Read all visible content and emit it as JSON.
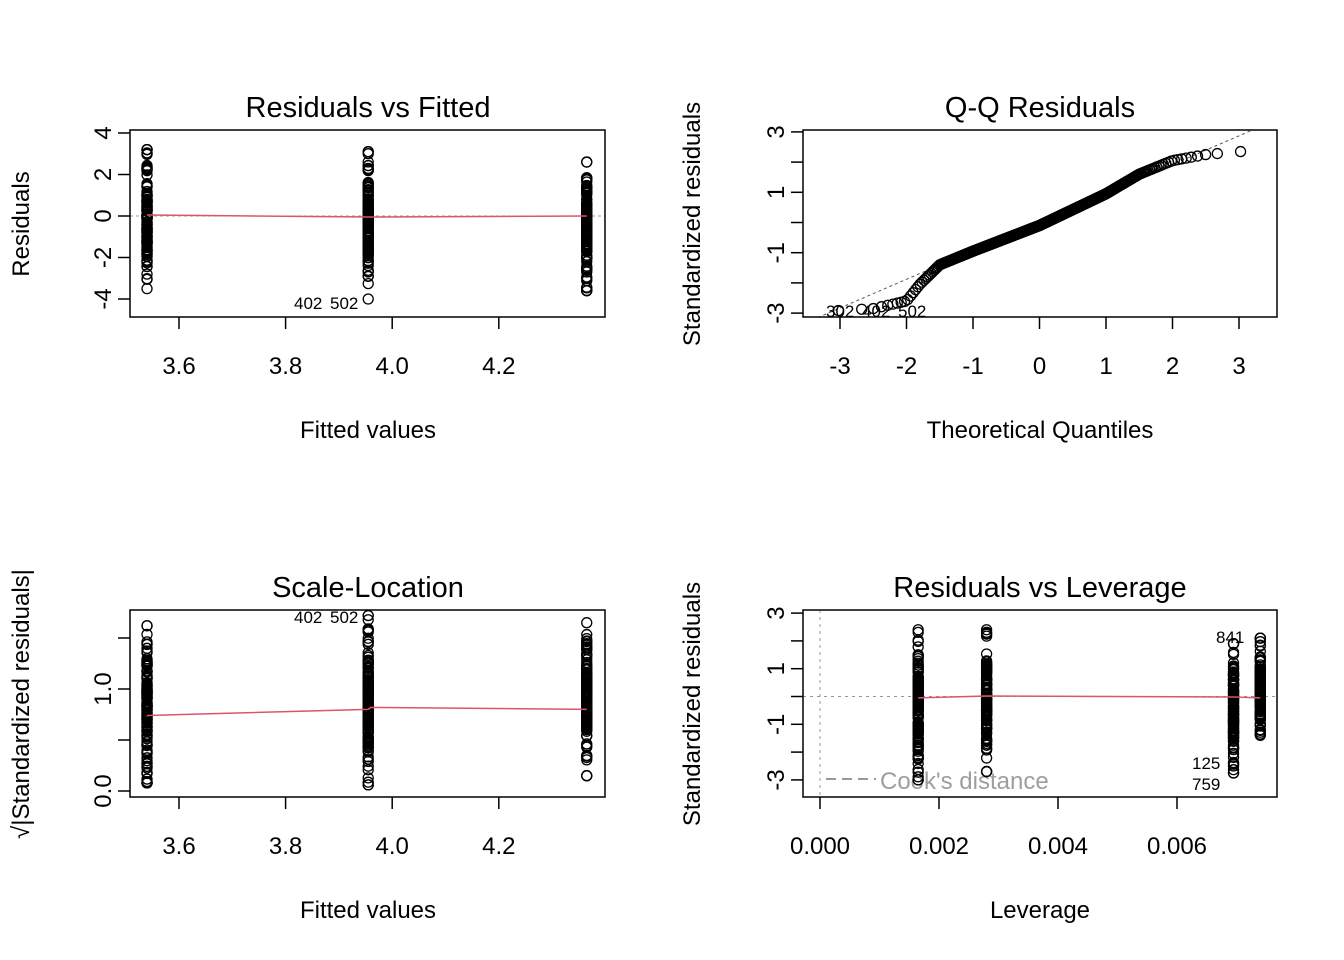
{
  "chart_data": [
    {
      "type": "scatter",
      "title": "Residuals vs Fitted",
      "xlabel": "Fitted values",
      "ylabel": "Residuals",
      "xlim": [
        3.51,
        4.39
      ],
      "ylim": [
        -4.5,
        4.5
      ],
      "xticks": [
        "3.6",
        "3.8",
        "4.0",
        "4.2"
      ],
      "yticks": [
        "-4",
        "-2",
        "0",
        "2",
        "4"
      ],
      "groups": [
        {
          "x": 3.54,
          "min": -3.5,
          "max": 3.2
        },
        {
          "x": 3.955,
          "min": -4.0,
          "max": 3.1
        },
        {
          "x": 4.365,
          "min": -3.6,
          "max": 2.6
        }
      ],
      "smooth_line": {
        "x": [
          3.54,
          3.955,
          4.365
        ],
        "y": [
          0.05,
          -0.05,
          0.0
        ]
      },
      "point_labels": [
        "402",
        "502"
      ]
    },
    {
      "type": "scatter",
      "title": "Q-Q Residuals",
      "xlabel": "Theoretical Quantiles",
      "ylabel": "Standardized residuals",
      "xlim": [
        -3.5,
        3.5
      ],
      "ylim": [
        -3.1,
        3.1
      ],
      "xticks": [
        "-3",
        "-2",
        "-1",
        "0",
        "1",
        "2",
        "3"
      ],
      "yticks": [
        "-3",
        "-1",
        "1",
        "3"
      ],
      "quantile_curve": {
        "theoretical": [
          -3.3,
          -2.5,
          -2.0,
          -1.8,
          -1.5,
          -1.0,
          0,
          1.0,
          1.5,
          2.0,
          2.5,
          3.3
        ],
        "sample": [
          -2.95,
          -2.85,
          -2.6,
          -2.05,
          -1.4,
          -0.95,
          -0.1,
          0.95,
          1.6,
          2.05,
          2.25,
          2.4
        ]
      },
      "point_labels": [
        "302",
        "402",
        "502"
      ]
    },
    {
      "type": "scatter",
      "title": "Scale-Location",
      "xlabel": "Fitted values",
      "ylabel": "√|Standardized residuals|",
      "xlim": [
        3.51,
        4.39
      ],
      "ylim": [
        0,
        1.8
      ],
      "xticks": [
        "3.6",
        "3.8",
        "4.0",
        "4.2"
      ],
      "yticks": [
        "0.0",
        "",
        "1.0",
        ""
      ],
      "groups": [
        {
          "x": 3.54,
          "min": 0.08,
          "max": 1.62
        },
        {
          "x": 3.955,
          "min": 0.06,
          "max": 1.72
        },
        {
          "x": 4.365,
          "min": 0.15,
          "max": 1.65
        }
      ],
      "smooth_line": {
        "x": [
          3.54,
          3.955,
          3.96,
          4.365
        ],
        "y": [
          0.74,
          0.8,
          0.82,
          0.8
        ]
      },
      "point_labels": [
        "402",
        "502"
      ]
    },
    {
      "type": "scatter",
      "title": "Residuals vs Leverage",
      "xlabel": "Leverage",
      "ylabel": "Standardized residuals",
      "xlim": [
        -0.0003,
        0.0077
      ],
      "ylim": [
        -3.4,
        3.3
      ],
      "xticks": [
        "0.000",
        "0.002",
        "0.004",
        "0.006"
      ],
      "yticks": [
        "-3",
        "-1",
        "1",
        "3"
      ],
      "groups": [
        {
          "x": 0.00165,
          "min": -3.0,
          "max": 2.4
        },
        {
          "x": 0.0028,
          "min": -2.7,
          "max": 2.4
        },
        {
          "x": 0.00695,
          "min": -2.75,
          "max": 1.9
        },
        {
          "x": 0.0074,
          "min": -1.4,
          "max": 2.1
        }
      ],
      "smooth_line": {
        "x": [
          0.00165,
          0.0028,
          0.00695,
          0.0074
        ],
        "y": [
          -0.05,
          0.02,
          -0.02,
          -0.05
        ]
      },
      "point_labels": [
        "841",
        "125",
        "759"
      ],
      "legend": "Cook's distance"
    }
  ]
}
